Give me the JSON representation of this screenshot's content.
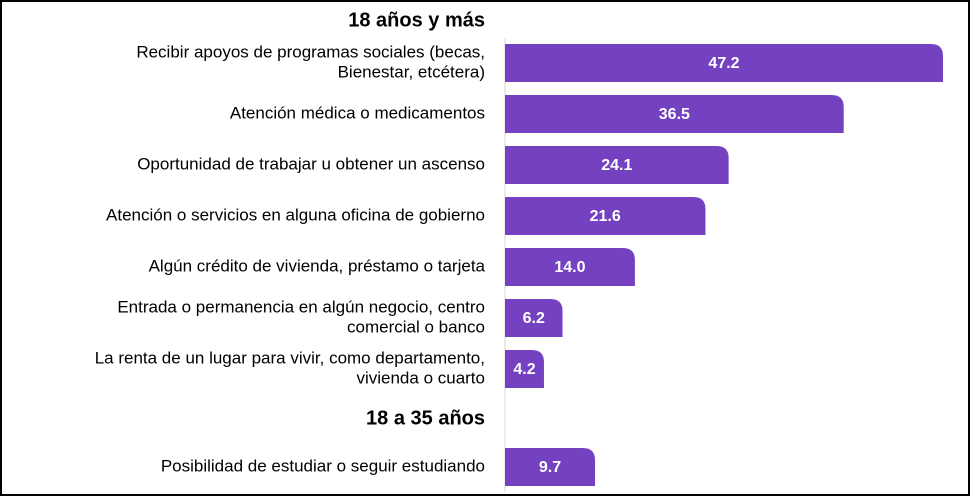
{
  "chart_data": {
    "type": "bar",
    "orientation": "horizontal",
    "xlim": [
      0,
      47.2
    ],
    "bar_color": "#7442c0",
    "groups": [
      {
        "title": "18 años y más",
        "categories": [
          [
            "Recibir apoyos de programas sociales (becas,",
            "Bienestar, etcétera)"
          ],
          [
            "Atención médica o medicamentos"
          ],
          [
            "Oportunidad de trabajar u obtener un ascenso"
          ],
          [
            "Atención o servicios en alguna oficina de gobierno"
          ],
          [
            "Algún crédito de vivienda, préstamo o tarjeta"
          ],
          [
            "Entrada o permanencia en algún negocio, centro",
            "comercial o banco"
          ],
          [
            "La renta de un lugar para vivir, como departamento,",
            "vivienda o cuarto"
          ]
        ],
        "values": [
          47.2,
          36.5,
          24.1,
          21.6,
          14.0,
          6.2,
          4.2
        ],
        "value_labels": [
          "47.2",
          "36.5",
          "24.1",
          "21.6",
          "14.0",
          "6.2",
          "4.2"
        ]
      },
      {
        "title": "18 a 35 años",
        "categories": [
          [
            "Posibilidad de estudiar o seguir estudiando"
          ]
        ],
        "values": [
          9.7
        ],
        "value_labels": [
          "9.7"
        ]
      }
    ]
  }
}
